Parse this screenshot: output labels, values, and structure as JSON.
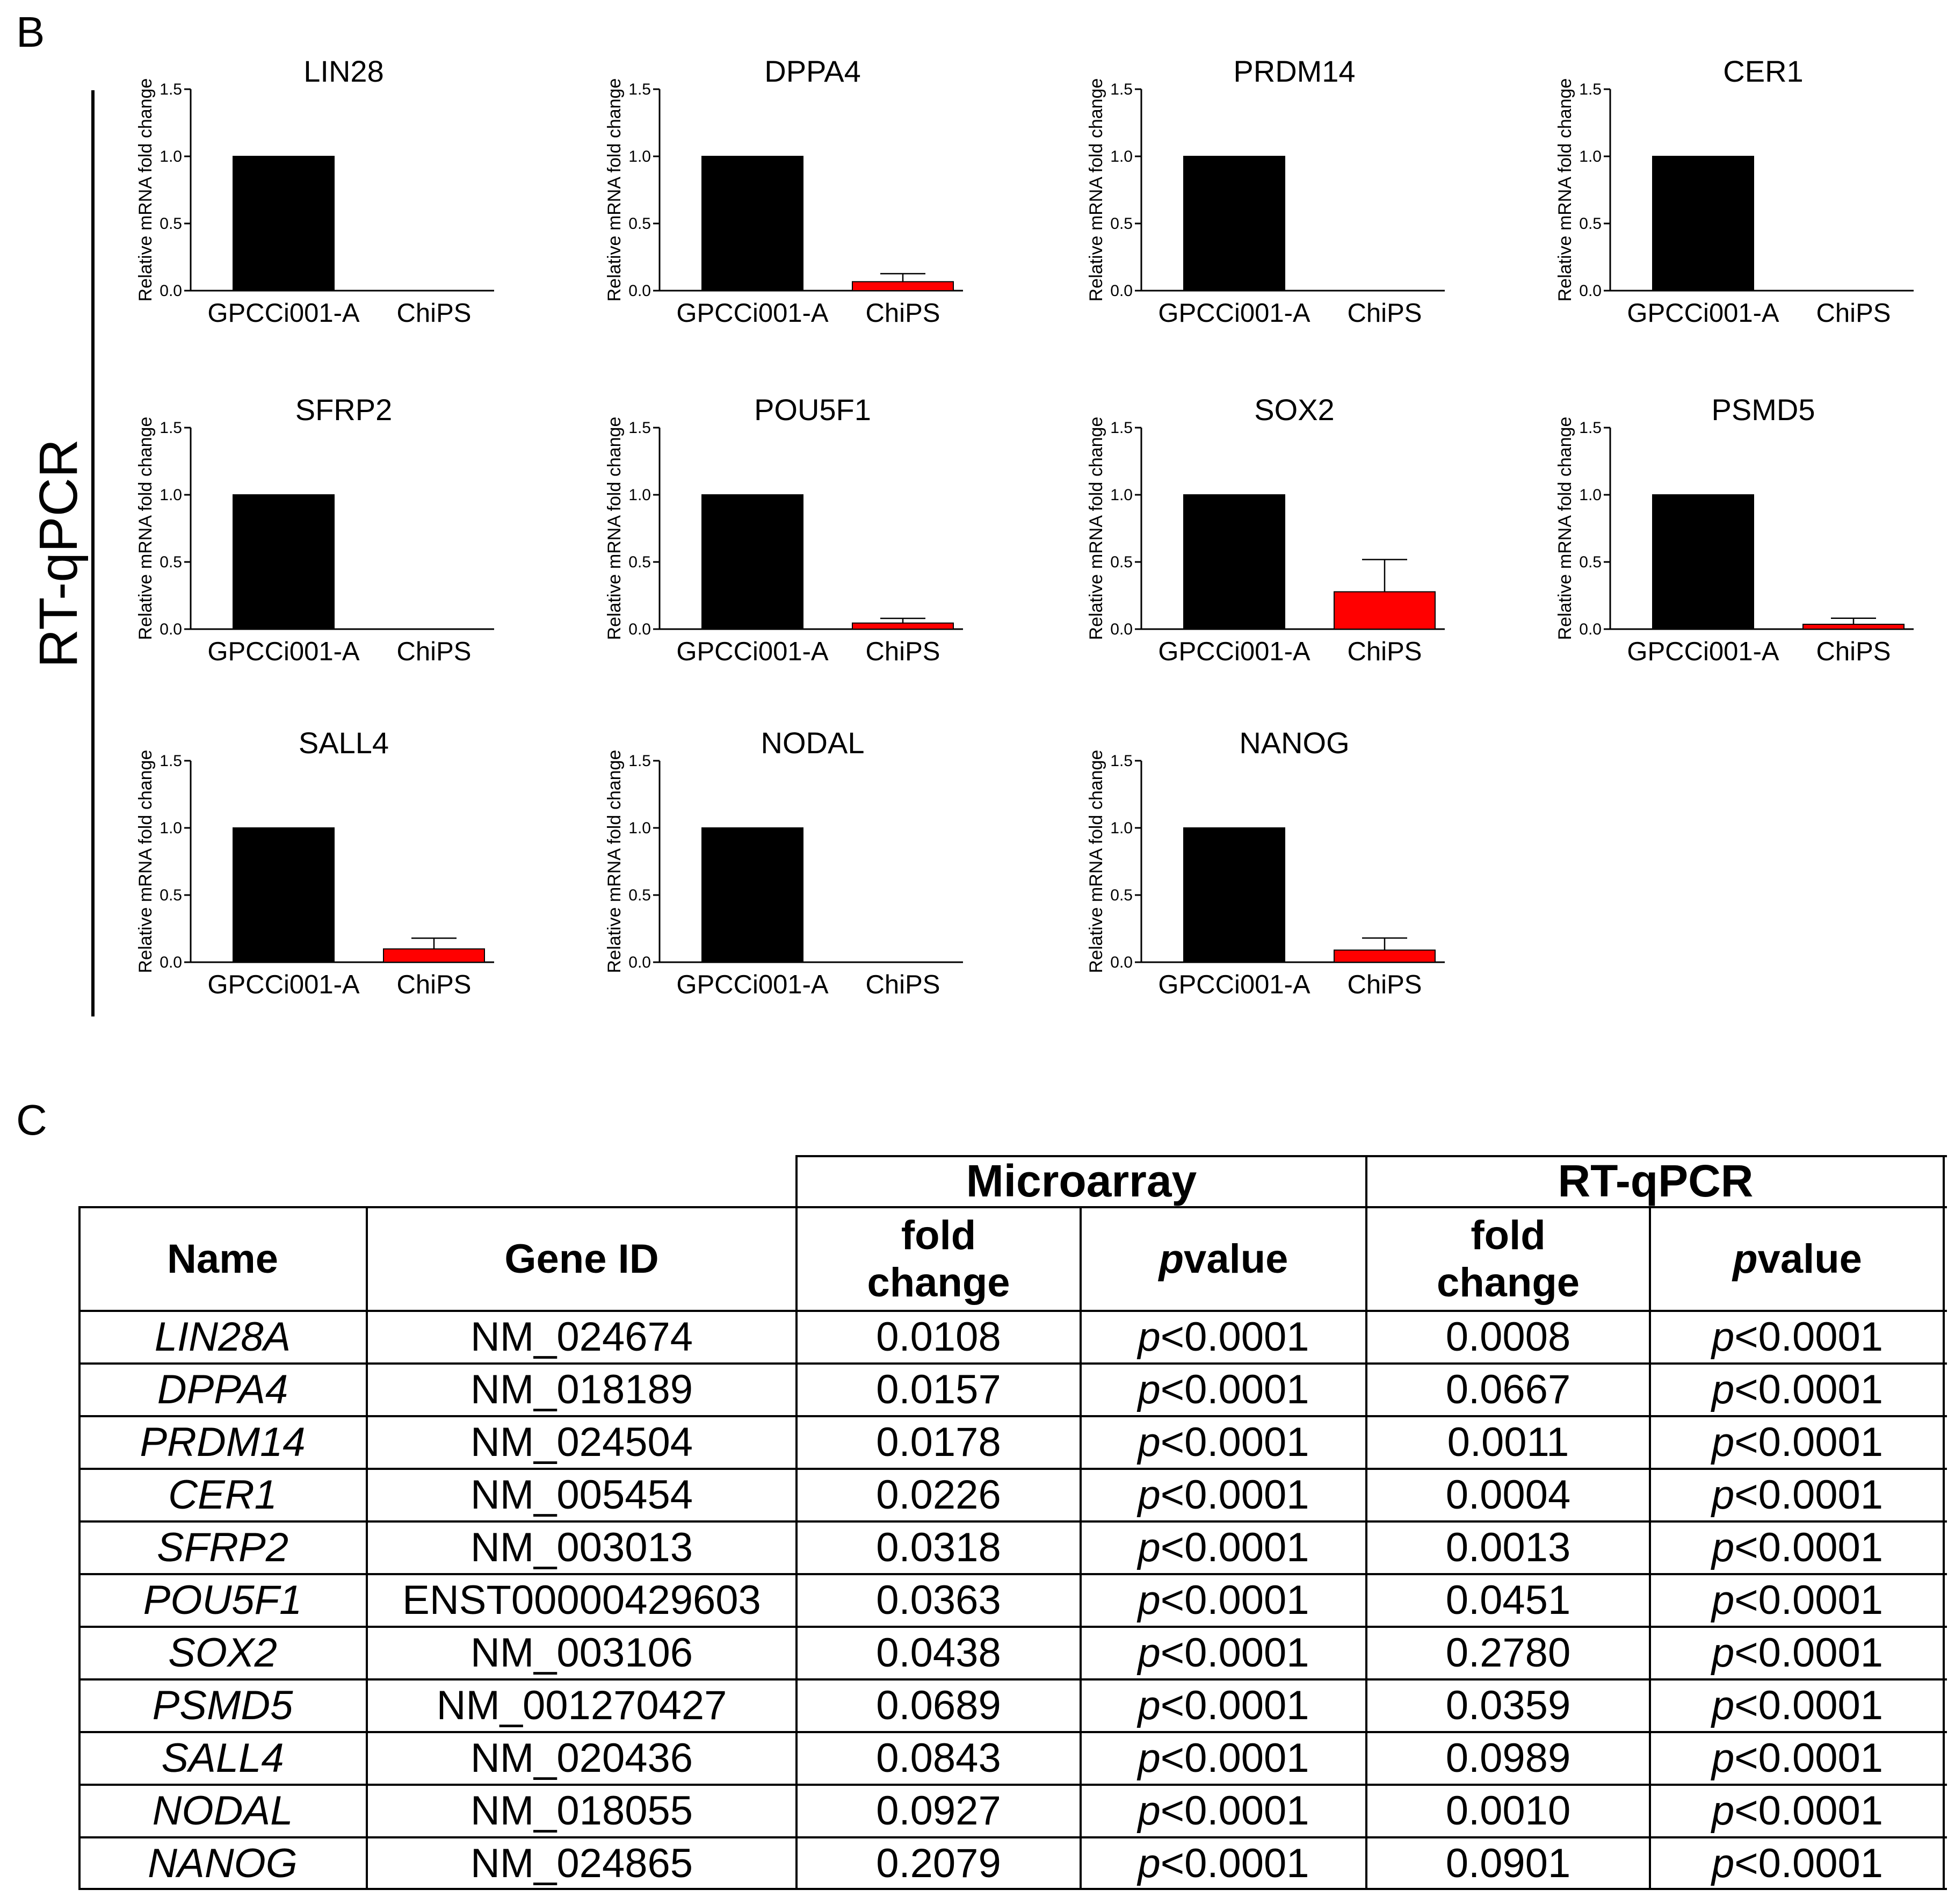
{
  "panel_b_label": "B",
  "panel_c_label": "C",
  "side_label": "RT-qPCR",
  "chart_data": [
    {
      "type": "bar",
      "title": "LIN28",
      "categories": [
        "GPCCi001-A",
        "ChiPS"
      ],
      "values": [
        1.0,
        0.0008
      ],
      "errors": [
        0,
        0
      ],
      "colors": [
        "#000000",
        "#ff0000"
      ],
      "ylabel": "Relative mRNA fold change",
      "ylim": [
        0,
        1.5
      ],
      "yticks": [
        "0.0",
        "0.5",
        "1.0",
        "1.5"
      ]
    },
    {
      "type": "bar",
      "title": "DPPA4",
      "categories": [
        "GPCCi001-A",
        "ChiPS"
      ],
      "values": [
        1.0,
        0.0667
      ],
      "errors": [
        0,
        0.06
      ],
      "colors": [
        "#000000",
        "#ff0000"
      ],
      "ylabel": "Relative mRNA fold change",
      "ylim": [
        0,
        1.5
      ],
      "yticks": [
        "0.0",
        "0.5",
        "1.0",
        "1.5"
      ]
    },
    {
      "type": "bar",
      "title": "PRDM14",
      "categories": [
        "GPCCi001-A",
        "ChiPS"
      ],
      "values": [
        1.0,
        0.0011
      ],
      "errors": [
        0,
        0
      ],
      "colors": [
        "#000000",
        "#ff0000"
      ],
      "ylabel": "Relative mRNA fold change",
      "ylim": [
        0,
        1.5
      ],
      "yticks": [
        "0.0",
        "0.5",
        "1.0",
        "1.5"
      ]
    },
    {
      "type": "bar",
      "title": "CER1",
      "categories": [
        "GPCCi001-A",
        "ChiPS"
      ],
      "values": [
        1.0,
        0.0004
      ],
      "errors": [
        0,
        0
      ],
      "colors": [
        "#000000",
        "#ff0000"
      ],
      "ylabel": "Relative mRNA fold change",
      "ylim": [
        0,
        1.5
      ],
      "yticks": [
        "0.0",
        "0.5",
        "1.0",
        "1.5"
      ]
    },
    {
      "type": "bar",
      "title": "SFRP2",
      "categories": [
        "GPCCi001-A",
        "ChiPS"
      ],
      "values": [
        1.0,
        0.0013
      ],
      "errors": [
        0,
        0
      ],
      "colors": [
        "#000000",
        "#ff0000"
      ],
      "ylabel": "Relative mRNA fold change",
      "ylim": [
        0,
        1.5
      ],
      "yticks": [
        "0.0",
        "0.5",
        "1.0",
        "1.5"
      ]
    },
    {
      "type": "bar",
      "title": "POU5F1",
      "categories": [
        "GPCCi001-A",
        "ChiPS"
      ],
      "values": [
        1.0,
        0.0451
      ],
      "errors": [
        0,
        0.035
      ],
      "colors": [
        "#000000",
        "#ff0000"
      ],
      "ylabel": "Relative mRNA fold change",
      "ylim": [
        0,
        1.5
      ],
      "yticks": [
        "0.0",
        "0.5",
        "1.0",
        "1.5"
      ]
    },
    {
      "type": "bar",
      "title": "SOX2",
      "categories": [
        "GPCCi001-A",
        "ChiPS"
      ],
      "values": [
        1.0,
        0.278
      ],
      "errors": [
        0,
        0.24
      ],
      "colors": [
        "#000000",
        "#ff0000"
      ],
      "ylabel": "Relative mRNA fold change",
      "ylim": [
        0,
        1.5
      ],
      "yticks": [
        "0.0",
        "0.5",
        "1.0",
        "1.5"
      ]
    },
    {
      "type": "bar",
      "title": "PSMD5",
      "categories": [
        "GPCCi001-A",
        "ChiPS"
      ],
      "values": [
        1.0,
        0.0359
      ],
      "errors": [
        0,
        0.045
      ],
      "colors": [
        "#000000",
        "#ff0000"
      ],
      "ylabel": "Relative mRNA fold change",
      "ylim": [
        0,
        1.5
      ],
      "yticks": [
        "0.0",
        "0.5",
        "1.0",
        "1.5"
      ]
    },
    {
      "type": "bar",
      "title": "SALL4",
      "categories": [
        "GPCCi001-A",
        "ChiPS"
      ],
      "values": [
        1.0,
        0.0989
      ],
      "errors": [
        0,
        0.08
      ],
      "colors": [
        "#000000",
        "#ff0000"
      ],
      "ylabel": "Relative mRNA fold change",
      "ylim": [
        0,
        1.5
      ],
      "yticks": [
        "0.0",
        "0.5",
        "1.0",
        "1.5"
      ]
    },
    {
      "type": "bar",
      "title": "NODAL",
      "categories": [
        "GPCCi001-A",
        "ChiPS"
      ],
      "values": [
        1.0,
        0.001
      ],
      "errors": [
        0,
        0
      ],
      "colors": [
        "#000000",
        "#ff0000"
      ],
      "ylabel": "Relative mRNA fold change",
      "ylim": [
        0,
        1.5
      ],
      "yticks": [
        "0.0",
        "0.5",
        "1.0",
        "1.5"
      ]
    },
    {
      "type": "bar",
      "title": "NANOG",
      "categories": [
        "GPCCi001-A",
        "ChiPS"
      ],
      "values": [
        1.0,
        0.0901
      ],
      "errors": [
        0,
        0.09
      ],
      "colors": [
        "#000000",
        "#ff0000"
      ],
      "ylabel": "Relative mRNA fold change",
      "ylim": [
        0,
        1.5
      ],
      "yticks": [
        "0.0",
        "0.5",
        "1.0",
        "1.5"
      ]
    }
  ],
  "table": {
    "group_headers": [
      "Microarray",
      "RT-qPCR"
    ],
    "headers": {
      "name": "Name",
      "gene_id": "Gene ID",
      "fold_change_line1": "fold",
      "fold_change_line2": "change",
      "p_italic": "p",
      "p_rest": " value"
    },
    "p_prefix": "p",
    "rows": [
      {
        "name": "LIN28A",
        "gene_id": "NM_024674",
        "ma_fold": "0.0108",
        "ma_p": "<0.0001",
        "qpcr_fold": "0.0008",
        "qpcr_p": "<0.0001"
      },
      {
        "name": "DPPA4",
        "gene_id": "NM_018189",
        "ma_fold": "0.0157",
        "ma_p": "<0.0001",
        "qpcr_fold": "0.0667",
        "qpcr_p": "<0.0001"
      },
      {
        "name": "PRDM14",
        "gene_id": "NM_024504",
        "ma_fold": "0.0178",
        "ma_p": "<0.0001",
        "qpcr_fold": "0.0011",
        "qpcr_p": "<0.0001"
      },
      {
        "name": "CER1",
        "gene_id": "NM_005454",
        "ma_fold": "0.0226",
        "ma_p": "<0.0001",
        "qpcr_fold": "0.0004",
        "qpcr_p": "<0.0001"
      },
      {
        "name": "SFRP2",
        "gene_id": "NM_003013",
        "ma_fold": "0.0318",
        "ma_p": "<0.0001",
        "qpcr_fold": "0.0013",
        "qpcr_p": "<0.0001"
      },
      {
        "name": "POU5F1",
        "gene_id": "ENST00000429603",
        "ma_fold": "0.0363",
        "ma_p": "<0.0001",
        "qpcr_fold": "0.0451",
        "qpcr_p": "<0.0001"
      },
      {
        "name": "SOX2",
        "gene_id": "NM_003106",
        "ma_fold": "0.0438",
        "ma_p": "<0.0001",
        "qpcr_fold": "0.2780",
        "qpcr_p": "<0.0001"
      },
      {
        "name": "PSMD5",
        "gene_id": "NM_001270427",
        "ma_fold": "0.0689",
        "ma_p": "<0.0001",
        "qpcr_fold": "0.0359",
        "qpcr_p": "<0.0001"
      },
      {
        "name": "SALL4",
        "gene_id": "NM_020436",
        "ma_fold": "0.0843",
        "ma_p": "<0.0001",
        "qpcr_fold": "0.0989",
        "qpcr_p": "<0.0001"
      },
      {
        "name": "NODAL",
        "gene_id": "NM_018055",
        "ma_fold": "0.0927",
        "ma_p": "<0.0001",
        "qpcr_fold": "0.0010",
        "qpcr_p": "<0.0001"
      },
      {
        "name": "NANOG",
        "gene_id": "NM_024865",
        "ma_fold": "0.2079",
        "ma_p": "<0.0001",
        "qpcr_fold": "0.0901",
        "qpcr_p": "<0.0001"
      }
    ]
  }
}
